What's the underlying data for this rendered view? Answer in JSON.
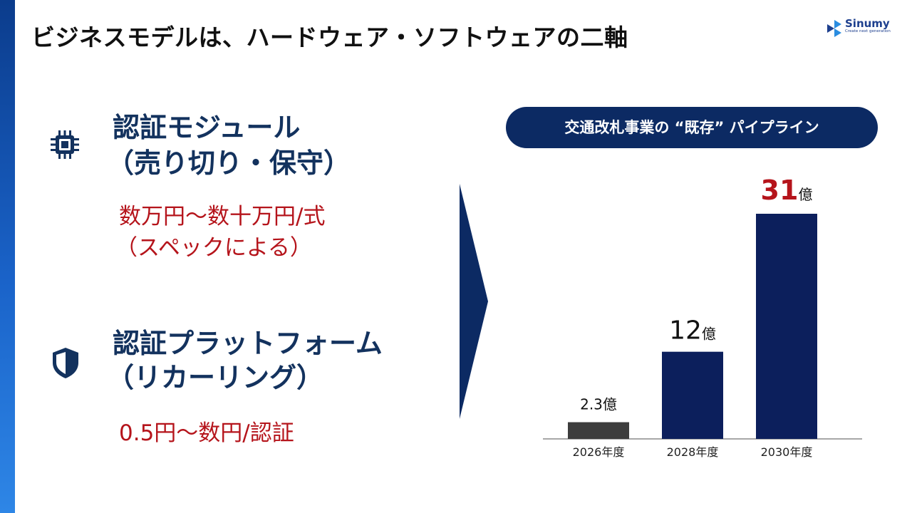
{
  "header": {
    "title": "ビジネスモデルは、ハードウェア・ソフトウェアの二軸",
    "logo": {
      "name": "Sinumy",
      "tagline": "Create next generation"
    }
  },
  "left": {
    "module": {
      "icon": "chip-icon",
      "line1": "認証モジュール",
      "line2": "（売り切り・保守）",
      "price_line1": "数万円〜数十万円/式",
      "price_line2": "（スペックによる）"
    },
    "platform": {
      "icon": "shield-icon",
      "line1": "認証プラットフォーム",
      "line2": "（リカーリング）",
      "price": "0.5円〜数円/認証"
    }
  },
  "chart_data": {
    "type": "bar",
    "title": "交通改札事業の “既存” パイプライン",
    "categories": [
      "2026年度",
      "2028年度",
      "2030年度"
    ],
    "values": [
      2.3,
      12,
      31
    ],
    "unit": "億",
    "value_labels": [
      "2.3",
      "12",
      "31"
    ],
    "bar_colors": [
      "#3d3d3d",
      "#0c1f5c",
      "#0c1f5c"
    ],
    "highlight_color": "#b5141b",
    "ylim": [
      0,
      31
    ],
    "grid": false,
    "legend": "none"
  },
  "colors": {
    "heading": "#13325e",
    "price": "#b5141b",
    "navy": "#0c2a63",
    "side_bar": "#1a63c9"
  }
}
